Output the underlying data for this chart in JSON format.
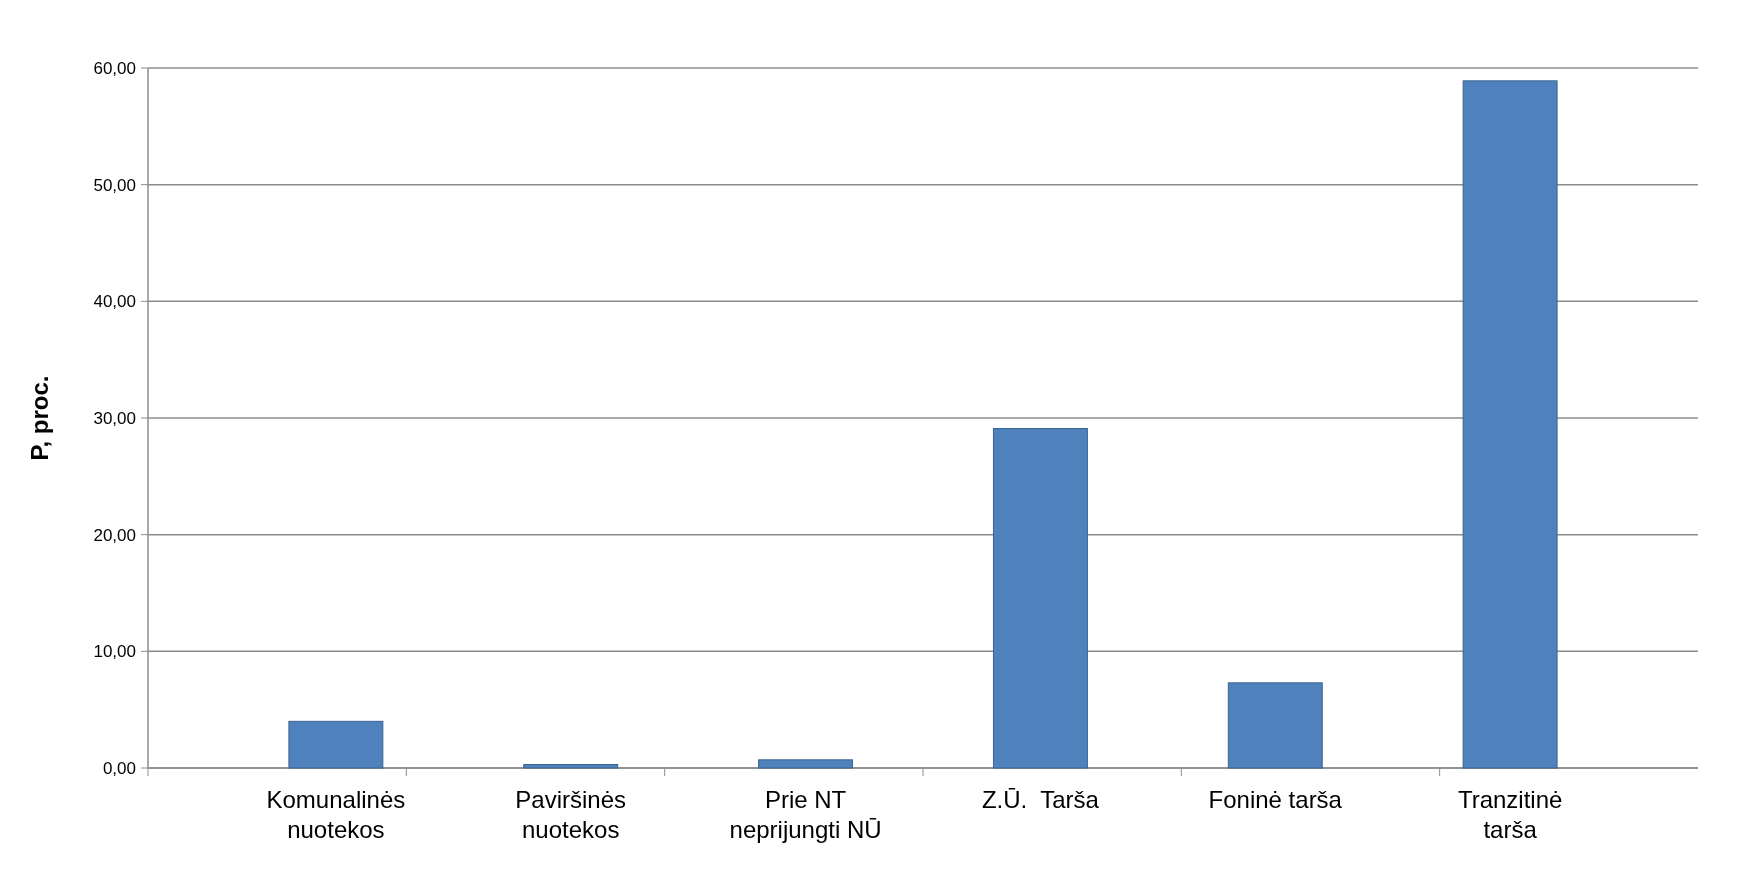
{
  "chart_data": {
    "type": "bar",
    "ylabel": "P, proc.",
    "categories": [
      "Komunalinės\nnuotekos",
      "Paviršinės\nnuotekos",
      "Prie NT\nneprijungti NŪ",
      "Z.Ū.  Tarša",
      "Foninė tarša",
      "Tranzitinė\ntarša"
    ],
    "values": [
      4.0,
      0.3,
      0.7,
      29.1,
      7.3,
      58.9
    ],
    "color": "#4f81bd",
    "ylim": [
      0,
      60
    ],
    "yticks": [
      {
        "value": 0,
        "label": "0,00"
      },
      {
        "value": 10,
        "label": "10,00"
      },
      {
        "value": 20,
        "label": "20,00"
      },
      {
        "value": 30,
        "label": "30,00"
      },
      {
        "value": 40,
        "label": "40,00"
      },
      {
        "value": 50,
        "label": "50,00"
      },
      {
        "value": 60,
        "label": "60,00"
      }
    ],
    "grid": "y"
  }
}
